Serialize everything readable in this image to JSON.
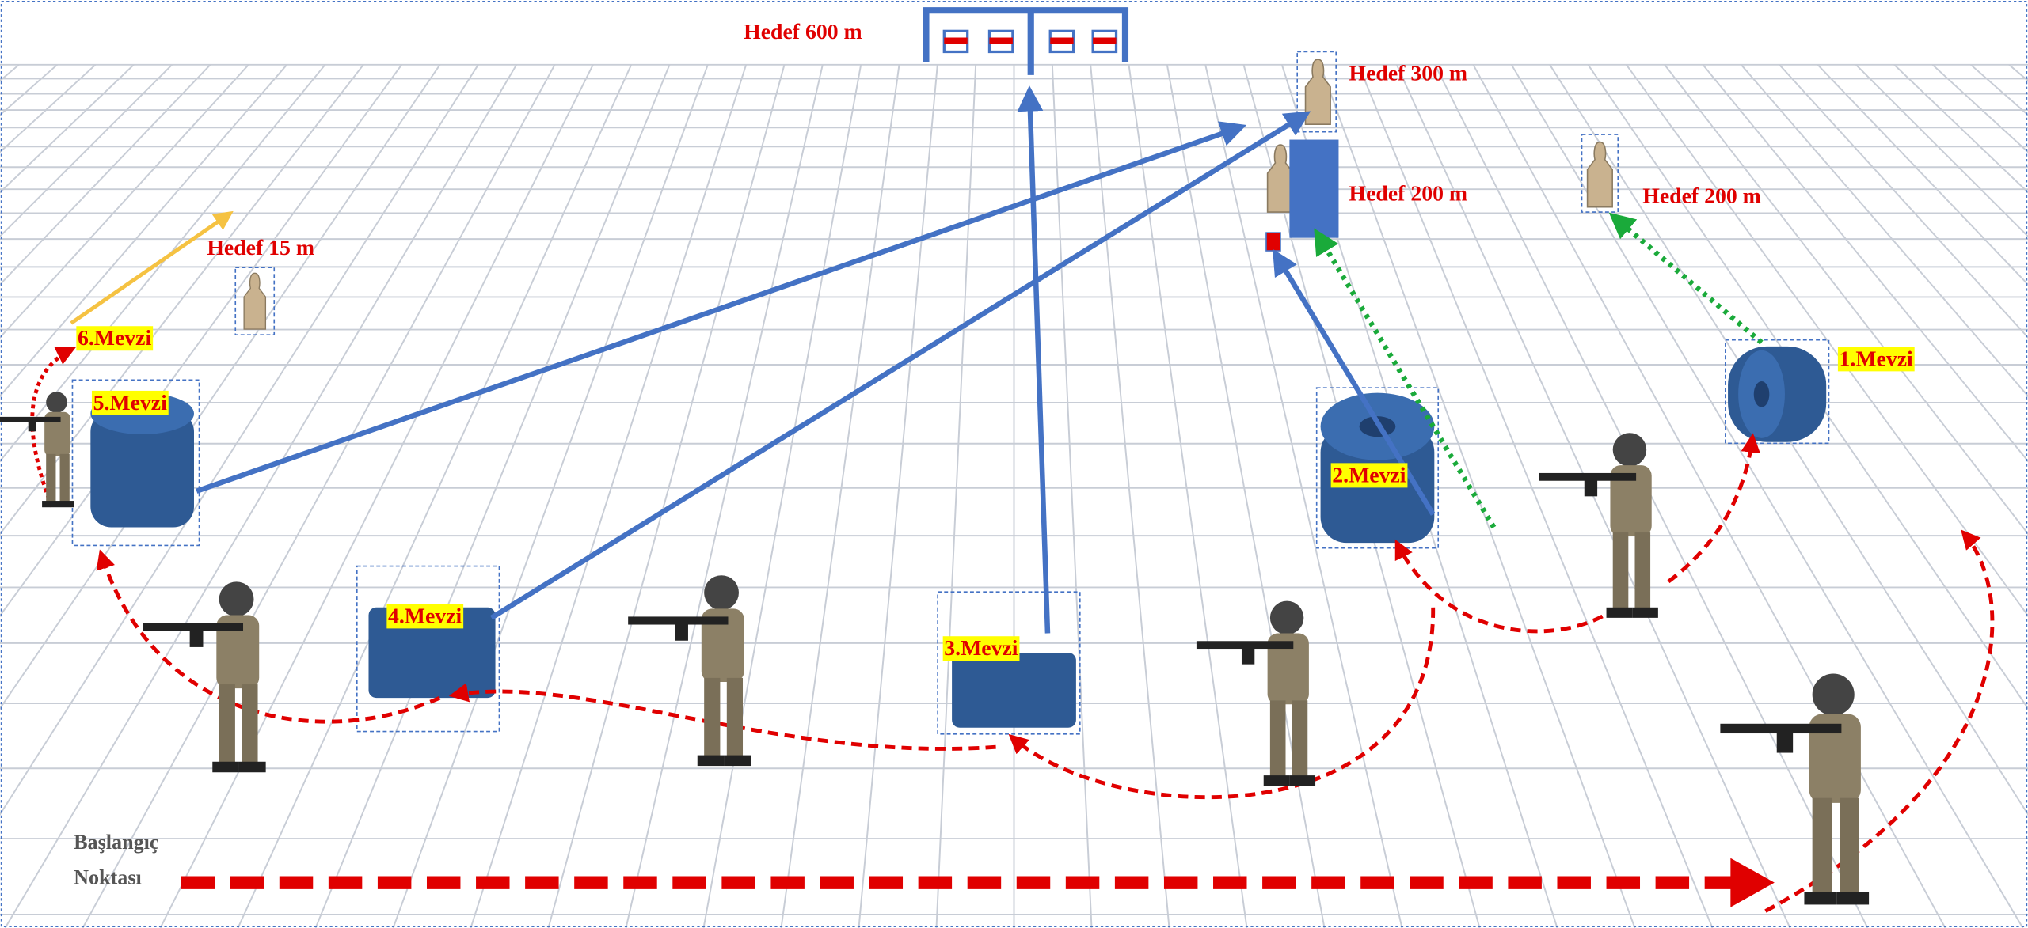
{
  "targets": [
    {
      "label": "Hedef 600 m"
    },
    {
      "label": "Hedef 300 m"
    },
    {
      "label": "Hedef 200 m"
    },
    {
      "label": "Hedef 200 m"
    },
    {
      "label": "Hedef 15 m"
    }
  ],
  "positions": [
    {
      "label": "1.Mevzi"
    },
    {
      "label": "2.Mevzi"
    },
    {
      "label": "3.Mevzi"
    },
    {
      "label": "4.Mevzi"
    },
    {
      "label": "5.Mevzi"
    },
    {
      "label": "6.Mevzi"
    }
  ],
  "start": {
    "lines": [
      "Başlangıç",
      "Noktası"
    ]
  }
}
